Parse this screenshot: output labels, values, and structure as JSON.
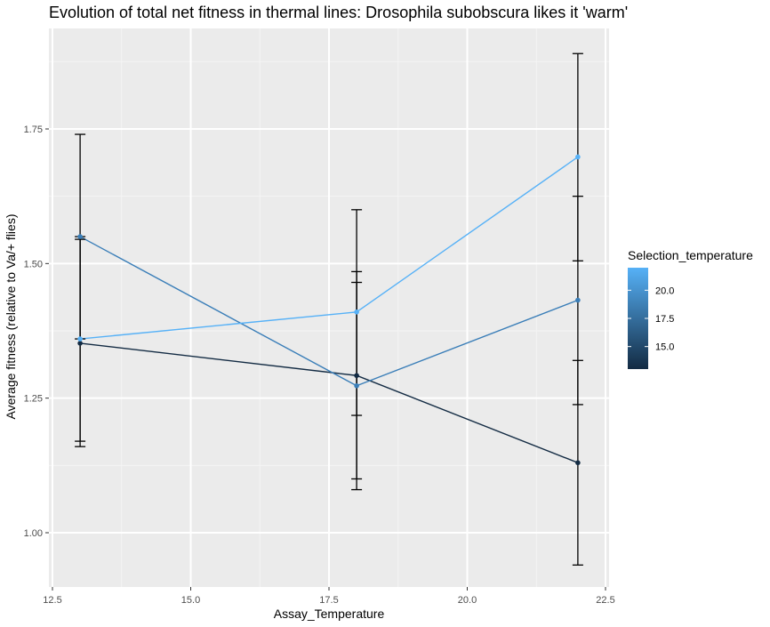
{
  "chart_data": {
    "type": "line",
    "title": "Evolution of total net fitness in thermal lines: Drosophila subobscura likes it 'warm'",
    "xlabel": "Assay_Temperature",
    "ylabel": "Average fitness (relative to Va/+ flies)",
    "xlim": [
      12.5,
      22.5
    ],
    "ylim": [
      0.9,
      1.88
    ],
    "x_ticks": [
      "12.5",
      "15.0",
      "17.5",
      "20.0",
      "22.5"
    ],
    "y_ticks": [
      "1.00",
      "1.25",
      "1.50",
      "1.75"
    ],
    "grid": true,
    "legend": {
      "title": "Selection_temperature",
      "position": "right",
      "type": "colorbar",
      "range": [
        13,
        22
      ],
      "ticks": [
        "15.0",
        "17.5",
        "20.0"
      ],
      "low_color": "#132b43",
      "high_color": "#56b1f7"
    },
    "series": [
      {
        "selection_temperature": 13,
        "color": "#132b43",
        "points": [
          {
            "x": 13,
            "y": 1.352,
            "ymin": 1.16,
            "ymax": 1.545
          },
          {
            "x": 18,
            "y": 1.292,
            "ymin": 1.1,
            "ymax": 1.485
          },
          {
            "x": 22,
            "y": 1.13,
            "ymin": 0.94,
            "ymax": 1.32
          }
        ]
      },
      {
        "selection_temperature": 18,
        "color": "#3a7eb8",
        "points": [
          {
            "x": 13,
            "y": 1.55,
            "ymin": 1.36,
            "ymax": 1.74
          },
          {
            "x": 18,
            "y": 1.273,
            "ymin": 1.08,
            "ymax": 1.465
          },
          {
            "x": 22,
            "y": 1.432,
            "ymin": 1.238,
            "ymax": 1.625
          }
        ]
      },
      {
        "selection_temperature": 22,
        "color": "#56b1f7",
        "points": [
          {
            "x": 13,
            "y": 1.36,
            "ymin": 1.17,
            "ymax": 1.55
          },
          {
            "x": 18,
            "y": 1.41,
            "ymin": 1.218,
            "ymax": 1.6
          },
          {
            "x": 22,
            "y": 1.698,
            "ymin": 1.505,
            "ymax": 1.89
          }
        ]
      }
    ]
  }
}
